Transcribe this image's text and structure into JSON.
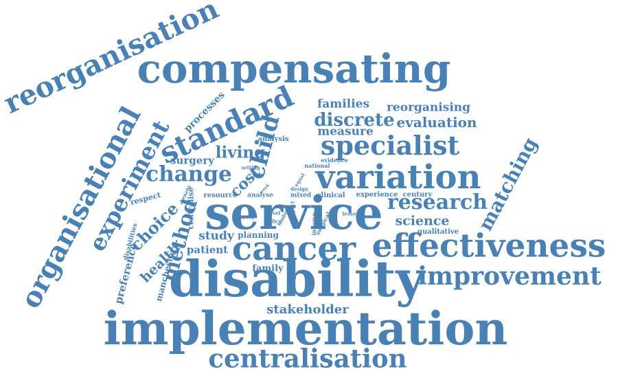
{
  "words": {
    "implementation": "implementation",
    "disability": "disability",
    "service": "service",
    "compensating": "compensating",
    "effectiveness": "effectiveness",
    "variation": "variation",
    "cancer": "cancer",
    "centralisation": "centralisation",
    "standard": "standard",
    "organisational": "organisational",
    "reorganisation": "reorganisation",
    "improvement": "improvement",
    "specialist": "specialist",
    "experiment": "experiment",
    "change": "change",
    "matching": "matching",
    "research": "research",
    "child": "child",
    "method": "method",
    "discrete": "discrete",
    "living": "living",
    "families": "families",
    "reorganising": "reorganising",
    "evaluation": "evaluation",
    "science": "science",
    "stakeholder": "stakeholder",
    "choice": "choice",
    "health": "health",
    "cost": "cost",
    "measure": "measure",
    "study": "study",
    "patient": "patient",
    "preference": "preference",
    "surgery": "surgery",
    "processes": "processes",
    "planning": "planning",
    "family": "family",
    "analysis": "analysis",
    "clinical": "clinical",
    "experience": "experience",
    "century": "century",
    "qualitative": "qualitative",
    "resource": "resource",
    "analyse": "analyse",
    "respect": "respect",
    "centralise": "centralise",
    "mixed": "mixed",
    "disabilities": "disabilities",
    "manchester": "manchester",
    "evidence": "evidence",
    "national": "national",
    "setting": "setting",
    "survey": "survey",
    "policy": "policy",
    "lesson": "lesson",
    "design": "design",
    "equal": "equal",
    "level": "level",
    "income": "income",
    "surgical": "surgical",
    "benefit": "benefit",
    "week": "week",
    "impact": "impact",
    "london": "london"
  },
  "colors": {
    "word": "#4a81b4",
    "background": "#ffffff"
  }
}
